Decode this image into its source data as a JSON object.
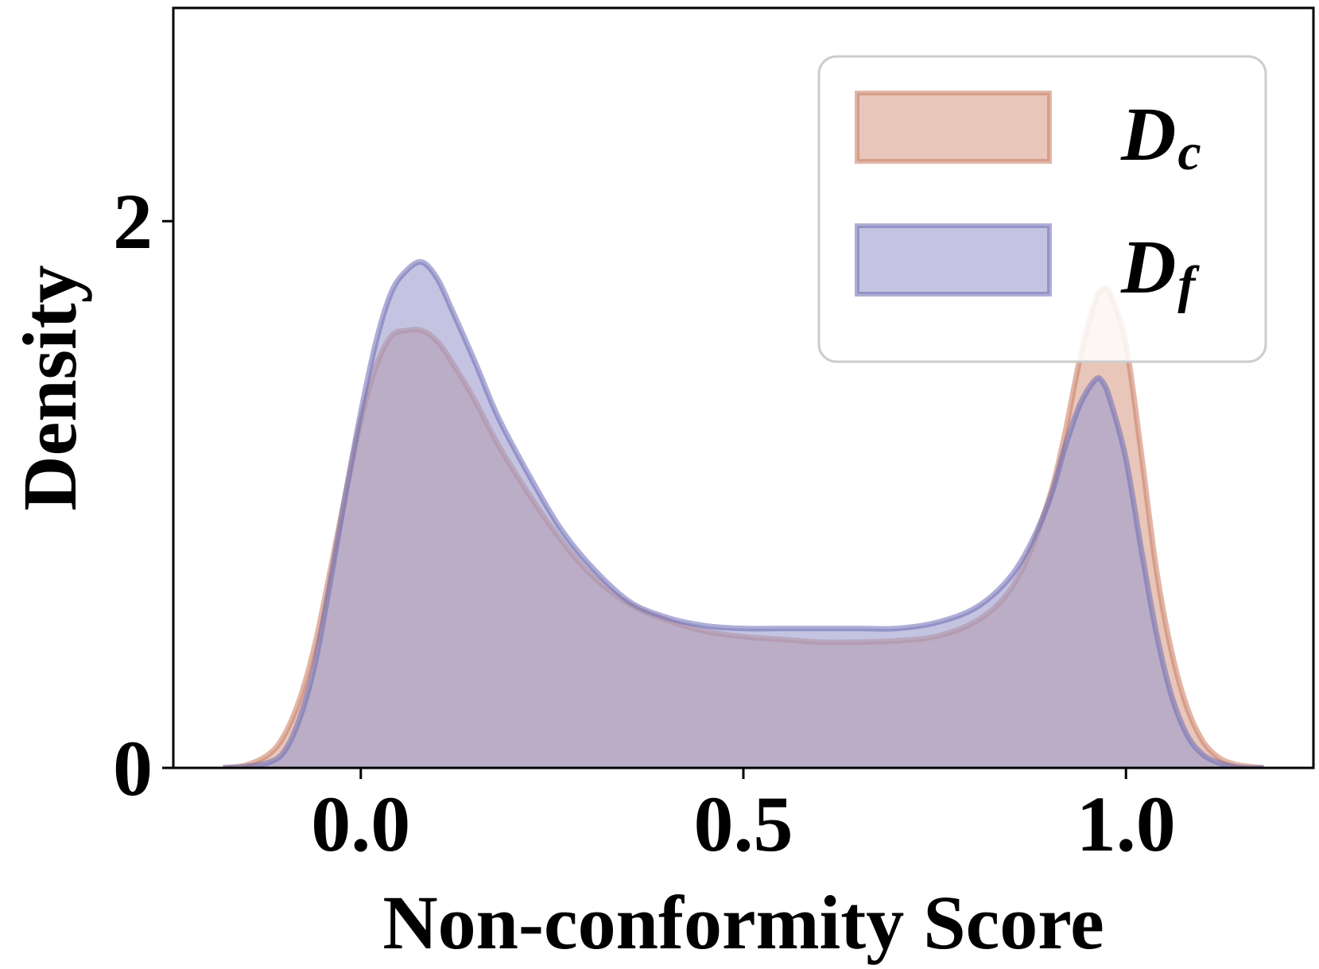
{
  "chart_data": {
    "type": "area",
    "title": "",
    "xlabel": "Non-conformity Score",
    "ylabel": "Density",
    "xlim": [
      -0.245,
      1.245
    ],
    "ylim": [
      0,
      2.78
    ],
    "x_ticks": [
      {
        "value": 0.0,
        "label": "0.0"
      },
      {
        "value": 0.5,
        "label": "0.5"
      },
      {
        "value": 1.0,
        "label": "1.0"
      }
    ],
    "y_ticks": [
      {
        "value": 0,
        "label": "0"
      },
      {
        "value": 2,
        "label": "2"
      }
    ],
    "grid": false,
    "legend_position": "top-right",
    "series": [
      {
        "legend_main": "D",
        "legend_sub": "c",
        "color": "#c87a5f",
        "fill": "#d9a08c",
        "x": [
          -0.18,
          -0.15,
          -0.12,
          -0.1,
          -0.08,
          -0.06,
          -0.04,
          -0.02,
          0.0,
          0.02,
          0.04,
          0.06,
          0.08,
          0.1,
          0.12,
          0.15,
          0.18,
          0.22,
          0.26,
          0.3,
          0.35,
          0.4,
          0.45,
          0.5,
          0.55,
          0.6,
          0.65,
          0.7,
          0.75,
          0.8,
          0.84,
          0.87,
          0.9,
          0.92,
          0.94,
          0.96,
          0.97,
          0.98,
          1.0,
          1.02,
          1.04,
          1.06,
          1.08,
          1.1,
          1.12,
          1.14,
          1.16,
          1.18
        ],
        "y": [
          0.0,
          0.01,
          0.05,
          0.12,
          0.25,
          0.45,
          0.72,
          1.0,
          1.27,
          1.47,
          1.58,
          1.6,
          1.6,
          1.56,
          1.48,
          1.34,
          1.18,
          1.0,
          0.84,
          0.71,
          0.6,
          0.54,
          0.5,
          0.48,
          0.47,
          0.46,
          0.46,
          0.465,
          0.48,
          0.53,
          0.62,
          0.76,
          0.99,
          1.22,
          1.5,
          1.71,
          1.75,
          1.73,
          1.55,
          1.15,
          0.72,
          0.42,
          0.22,
          0.1,
          0.04,
          0.015,
          0.005,
          0.0
        ]
      },
      {
        "legend_main": "D",
        "legend_sub": "f",
        "color": "#6b6bb5",
        "fill": "#9d9dce",
        "x": [
          -0.18,
          -0.15,
          -0.12,
          -0.1,
          -0.08,
          -0.06,
          -0.04,
          -0.02,
          0.0,
          0.02,
          0.04,
          0.06,
          0.08,
          0.1,
          0.12,
          0.15,
          0.18,
          0.22,
          0.26,
          0.3,
          0.35,
          0.4,
          0.45,
          0.5,
          0.55,
          0.6,
          0.65,
          0.7,
          0.75,
          0.8,
          0.84,
          0.87,
          0.9,
          0.92,
          0.94,
          0.96,
          0.97,
          0.98,
          1.0,
          1.02,
          1.04,
          1.06,
          1.08,
          1.1,
          1.12,
          1.14,
          1.16,
          1.18
        ],
        "y": [
          0.0,
          0.005,
          0.02,
          0.06,
          0.18,
          0.38,
          0.68,
          1.0,
          1.3,
          1.56,
          1.74,
          1.82,
          1.85,
          1.79,
          1.67,
          1.48,
          1.28,
          1.07,
          0.88,
          0.74,
          0.61,
          0.55,
          0.52,
          0.51,
          0.51,
          0.51,
          0.51,
          0.51,
          0.53,
          0.58,
          0.67,
          0.79,
          0.98,
          1.17,
          1.33,
          1.42,
          1.41,
          1.34,
          1.13,
          0.8,
          0.49,
          0.26,
          0.12,
          0.05,
          0.02,
          0.005,
          0.0,
          0.0
        ]
      }
    ]
  }
}
